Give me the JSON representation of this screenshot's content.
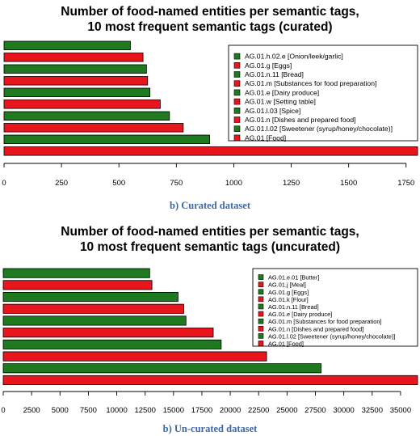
{
  "chart_data": [
    {
      "type": "bar",
      "orientation": "horizontal",
      "title_line1": "Number of food-named entities per semantic tags,",
      "title_line2": "10 most frequent semantic tags (curated)",
      "caption": "b) Curated dataset",
      "categories": [
        "AG.01.h.02.e [Onion/leek/garlic]",
        "AG.01.g [Eggs]",
        "AG.01.n.11 [Bread]",
        "AG.01.m [Substances for food preparation]",
        "AG.01.e [Dairy produce]",
        "AG.01.w [Setting table]",
        "AG.01.l.03 [Spice]",
        "AG.01.n [Dishes and prepared food]",
        "AG.01.l.02 [Sweetener (syrup/honey/chocolate)]",
        "AG.01 [Food]"
      ],
      "values": [
        550,
        605,
        620,
        625,
        635,
        680,
        720,
        780,
        895,
        1800
      ],
      "colors": [
        "#1f7a1f",
        "#e8161c",
        "#1f7a1f",
        "#e8161c",
        "#1f7a1f",
        "#e8161c",
        "#1f7a1f",
        "#e8161c",
        "#1f7a1f",
        "#e8161c"
      ],
      "xlim": [
        0,
        1800
      ],
      "ticks": [
        "0",
        "250",
        "500",
        "750",
        "1000",
        "1250",
        "1500",
        "1750"
      ],
      "tick_values": [
        0,
        250,
        500,
        750,
        1000,
        1250,
        1500,
        1750
      ],
      "legend_position": "top-right"
    },
    {
      "type": "bar",
      "orientation": "horizontal",
      "title_line1": "Number of food-named entities per semantic tags,",
      "title_line2": "10 most frequent semantic tags (uncurated)",
      "caption": "b) Un-curated dataset",
      "categories": [
        "AG.01.e.01 [Butter]",
        "AG.01.j [Meal]",
        "AG.01.g [Eggs]",
        "AG.01.k [Flour]",
        "AG.01.n.11 [Bread]",
        "AG.01.e [Dairy produce]",
        "AG.01.m [Substances for food preparation]",
        "AG.01.n [Dishes and prepared food]",
        "AG.01.l.02 [Sweetener (syrup/honey/chocolate)]",
        "AG.01 [Food]"
      ],
      "values": [
        12900,
        13100,
        15400,
        15900,
        16100,
        18500,
        19200,
        23200,
        28000,
        36500
      ],
      "colors": [
        "#1f7a1f",
        "#e8161c",
        "#1f7a1f",
        "#e8161c",
        "#1f7a1f",
        "#e8161c",
        "#1f7a1f",
        "#e8161c",
        "#1f7a1f",
        "#e8161c"
      ],
      "xlim": [
        0,
        36500
      ],
      "ticks": [
        "0",
        "2500",
        "5000",
        "7500",
        "10000",
        "12500",
        "15000",
        "17500",
        "20000",
        "22500",
        "25000",
        "27500",
        "30000",
        "32500",
        "35000"
      ],
      "tick_values": [
        0,
        2500,
        5000,
        7500,
        10000,
        12500,
        15000,
        17500,
        20000,
        22500,
        25000,
        27500,
        30000,
        32500,
        35000
      ],
      "legend_position": "top-right"
    }
  ]
}
